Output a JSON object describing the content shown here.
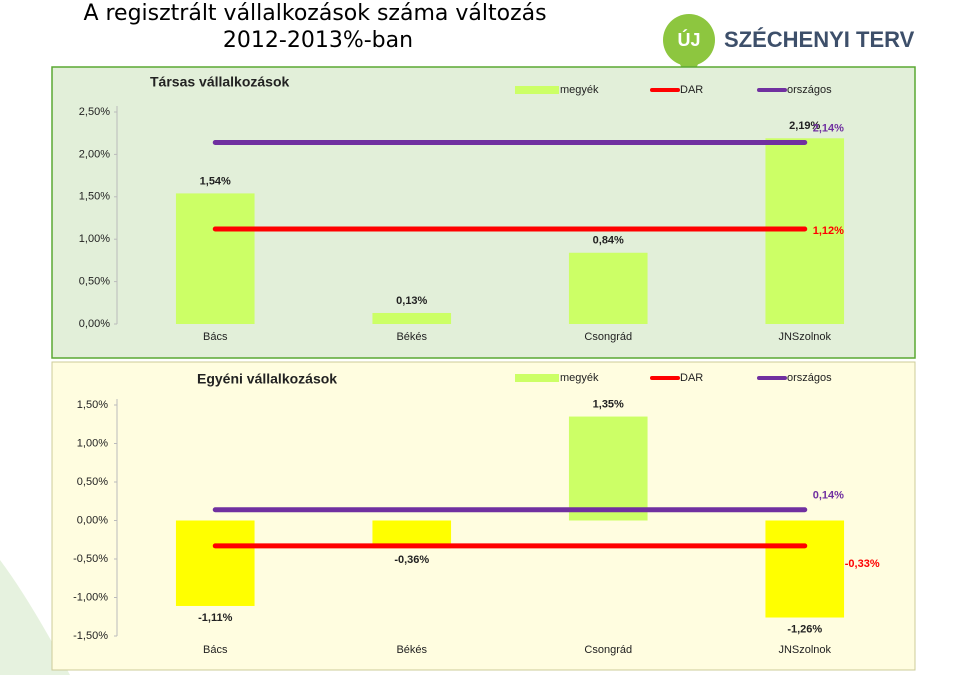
{
  "title": [
    "A regisztrált vállalkozások száma változás",
    "2012-2013%-ban"
  ],
  "logo": {
    "mark": "ÚJ",
    "text": "SZÉCHENYI TERV"
  },
  "chart_data": [
    {
      "type": "bar",
      "title": "Társas vállalkozások",
      "categories": [
        "Bács",
        "Békés",
        "Csongrád",
        "JNSzolnok"
      ],
      "ylim": [
        0,
        2.5
      ],
      "yticks": [
        {
          "value": 0,
          "label": "0,00%"
        },
        {
          "value": 0.5,
          "label": "0,50%"
        },
        {
          "value": 1,
          "label": "1,00%"
        },
        {
          "value": 1.5,
          "label": "1,50%"
        },
        {
          "value": 2,
          "label": "2,00%"
        },
        {
          "value": 2.5,
          "label": "2,50%"
        }
      ],
      "series": [
        {
          "name": "megyék",
          "color": "#ccff66",
          "values": [
            1.54,
            0.13,
            0.84,
            2.19
          ],
          "value_labels": [
            "1,54%",
            "0,13%",
            "0,84%",
            "2,19%"
          ]
        },
        {
          "name": "DAR",
          "type": "line",
          "color": "#ff0000",
          "values": [
            1.12,
            1.12,
            1.12,
            1.12
          ],
          "value_labels": [
            null,
            null,
            null,
            "1,12%"
          ]
        },
        {
          "name": "országos",
          "type": "line",
          "color": "#7030a0",
          "values": [
            2.14,
            2.14,
            2.14,
            2.14
          ],
          "value_labels": [
            null,
            null,
            null,
            "2,14%"
          ]
        }
      ]
    },
    {
      "type": "bar",
      "title": "Egyéni vállalkozások",
      "categories": [
        "Bács",
        "Békés",
        "Csongrád",
        "JNSzolnok"
      ],
      "ylim": [
        -1.5,
        1.5
      ],
      "yticks": [
        {
          "value": -1.5,
          "label": "-1,50%"
        },
        {
          "value": -1,
          "label": "-1,00%"
        },
        {
          "value": -0.5,
          "label": "-0,50%"
        },
        {
          "value": 0,
          "label": "0,00%"
        },
        {
          "value": 0.5,
          "label": "0,50%"
        },
        {
          "value": 1,
          "label": "1,00%"
        },
        {
          "value": 1.5,
          "label": "1,50%"
        }
      ],
      "series": [
        {
          "name": "megyék",
          "color": "#ccff66",
          "colors": [
            "#ffff00",
            "#ffff00",
            "#ccff66",
            "#ffff00"
          ],
          "values": [
            -1.11,
            -0.36,
            1.35,
            -1.26
          ],
          "value_labels": [
            "-1,11%",
            "-0,36%",
            "1,35%",
            "-1,26%"
          ]
        },
        {
          "name": "DAR",
          "type": "line",
          "color": "#ff0000",
          "values": [
            -0.33,
            -0.33,
            -0.33,
            -0.33
          ],
          "value_labels": [
            null,
            null,
            null,
            "-0,33%"
          ]
        },
        {
          "name": "országos",
          "type": "line",
          "color": "#7030a0",
          "values": [
            0.14,
            0.14,
            0.14,
            0.14
          ],
          "value_labels": [
            null,
            null,
            null,
            "0,14%"
          ]
        }
      ]
    }
  ]
}
